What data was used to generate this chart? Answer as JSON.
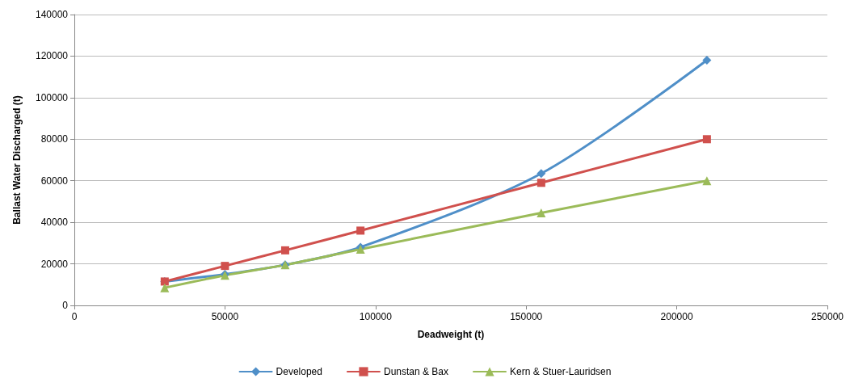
{
  "chart_data": {
    "type": "line",
    "xlabel": "Deadweight (t)",
    "ylabel": "Ballast Water Discharged (t)",
    "x": [
      30000,
      50000,
      70000,
      95000,
      155000,
      210000
    ],
    "xlim": [
      0,
      250000
    ],
    "xticks": [
      0,
      50000,
      100000,
      150000,
      200000,
      250000
    ],
    "ylim": [
      0,
      140000
    ],
    "yticks": [
      0,
      20000,
      40000,
      60000,
      80000,
      100000,
      120000,
      140000
    ],
    "grid": "y",
    "legend": "bottom",
    "series": [
      {
        "name": "Developed",
        "color": "#4f8fc8",
        "marker": "diamond",
        "values": [
          11500,
          15000,
          19500,
          28000,
          63500,
          118000
        ]
      },
      {
        "name": "Dunstan & Bax",
        "color": "#d0504d",
        "marker": "square",
        "values": [
          11500,
          19000,
          26500,
          36000,
          59000,
          80000
        ]
      },
      {
        "name": "Kern & Stuer-Lauridsen",
        "color": "#9bbb59",
        "marker": "triangle",
        "values": [
          8500,
          14500,
          19500,
          27000,
          44500,
          60000
        ]
      }
    ]
  }
}
